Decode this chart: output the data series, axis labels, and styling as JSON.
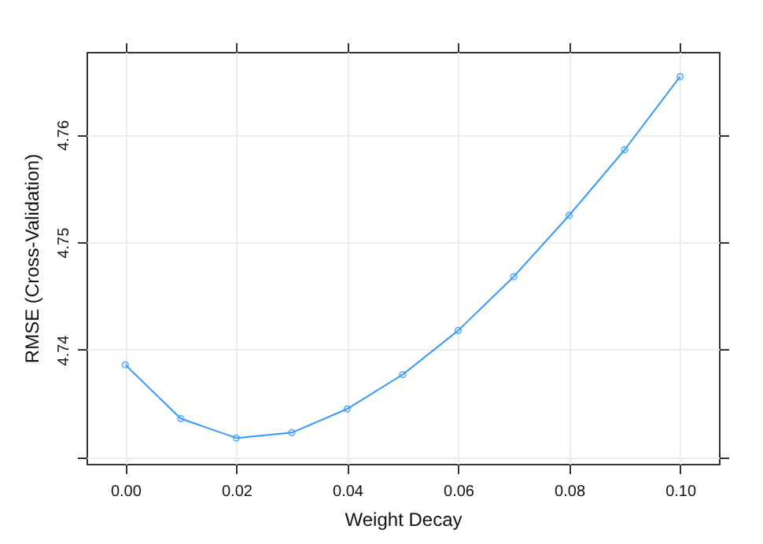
{
  "chart_data": {
    "type": "line",
    "xlabel": "Weight Decay",
    "ylabel": "RMSE (Cross-Validation)",
    "x": [
      0.0,
      0.01,
      0.02,
      0.03,
      0.04,
      0.05,
      0.06,
      0.07,
      0.08,
      0.09,
      0.1
    ],
    "series": [
      {
        "color": "#3399ff",
        "values": [
          4.7386,
          4.7336,
          4.7318,
          4.7323,
          4.7345,
          4.7377,
          4.7418,
          4.7468,
          4.7525,
          4.7586,
          4.7654
        ]
      }
    ],
    "xlim": [
      -0.007,
      0.107
    ],
    "ylim": [
      4.7294,
      4.7677
    ],
    "xticks": [
      {
        "value": 0.0,
        "label": "0.00"
      },
      0.02,
      0.04,
      0.06,
      0.08,
      {
        "value": 0.1,
        "label": "0.10"
      }
    ],
    "yticks": [
      {
        "value": 4.73,
        "label": null
      },
      4.74,
      4.75,
      4.76
    ],
    "grid": true,
    "marker": "circle",
    "line_style": "solid",
    "legend": false
  }
}
